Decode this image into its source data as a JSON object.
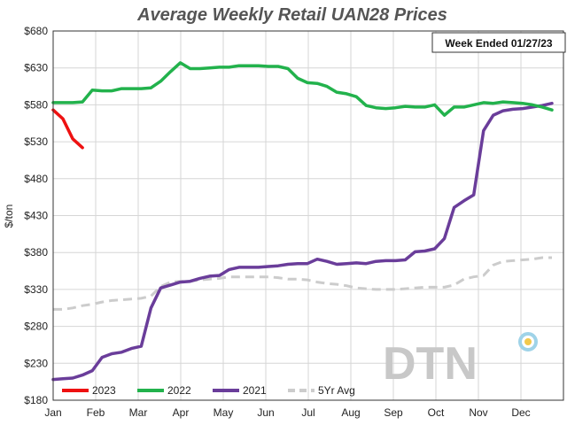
{
  "chart_data": {
    "type": "line",
    "title": "Average Weekly Retail UAN28 Prices",
    "ylabel": "$/ton",
    "xlabel": "",
    "ylim": [
      180,
      680
    ],
    "xlim": [
      0,
      12
    ],
    "y_ticks": [
      180,
      230,
      280,
      330,
      380,
      430,
      480,
      530,
      580,
      630,
      680
    ],
    "y_tick_labels": [
      "$180",
      "$230",
      "$280",
      "$330",
      "$380",
      "$430",
      "$480",
      "$530",
      "$580",
      "$630",
      "$680"
    ],
    "x_ticks": [
      0,
      1,
      2,
      3,
      4,
      5,
      6,
      7,
      8,
      9,
      10,
      11
    ],
    "x_tick_labels": [
      "Jan",
      "Feb",
      "Mar",
      "Apr",
      "May",
      "Jun",
      "Jul",
      "Aug",
      "Sep",
      "Oct",
      "Nov",
      "Dec"
    ],
    "grid": true,
    "legend_position": "bottom",
    "annotation": "Week Ended 01/27/23",
    "watermark": "DTN",
    "series": [
      {
        "name": "2023",
        "color": "#ee1111",
        "dashed": false,
        "x": [
          0.0,
          0.23,
          0.46,
          0.69
        ],
        "y": [
          573,
          561,
          534,
          522
        ]
      },
      {
        "name": "2022",
        "color": "#22b24c",
        "dashed": false,
        "x": [
          0.0,
          0.23,
          0.46,
          0.69,
          0.92,
          1.15,
          1.38,
          1.61,
          1.84,
          2.07,
          2.3,
          2.53,
          2.76,
          2.99,
          3.22,
          3.45,
          3.68,
          3.91,
          4.14,
          4.37,
          4.6,
          4.83,
          5.06,
          5.29,
          5.52,
          5.75,
          5.98,
          6.21,
          6.44,
          6.67,
          6.9,
          7.13,
          7.36,
          7.59,
          7.82,
          8.05,
          8.28,
          8.51,
          8.74,
          8.97,
          9.2,
          9.43,
          9.66,
          9.89,
          10.12,
          10.35,
          10.58,
          10.81,
          11.04,
          11.27,
          11.5,
          11.73
        ],
        "y": [
          583,
          583,
          583,
          584,
          600,
          599,
          599,
          602,
          602,
          602,
          603,
          612,
          625,
          637,
          629,
          629,
          630,
          631,
          631,
          633,
          633,
          633,
          632,
          632,
          629,
          616,
          610,
          609,
          605,
          597,
          595,
          591,
          579,
          576,
          575,
          576,
          578,
          577,
          577,
          580,
          566,
          577,
          577,
          580,
          583,
          582,
          584,
          583,
          582,
          580,
          577,
          573
        ]
      },
      {
        "name": "2021",
        "color": "#6a3d9a",
        "dashed": false,
        "x": [
          0.0,
          0.23,
          0.46,
          0.69,
          0.92,
          1.15,
          1.38,
          1.61,
          1.84,
          2.07,
          2.3,
          2.53,
          2.76,
          2.99,
          3.22,
          3.45,
          3.68,
          3.91,
          4.14,
          4.37,
          4.6,
          4.83,
          5.06,
          5.29,
          5.52,
          5.75,
          5.98,
          6.21,
          6.44,
          6.67,
          6.9,
          7.13,
          7.36,
          7.59,
          7.82,
          8.05,
          8.28,
          8.51,
          8.74,
          8.97,
          9.2,
          9.43,
          9.66,
          9.89,
          10.12,
          10.35,
          10.58,
          10.81,
          11.04,
          11.27,
          11.5,
          11.73
        ],
        "y": [
          208,
          209,
          210,
          214,
          220,
          238,
          243,
          245,
          250,
          253,
          305,
          332,
          336,
          340,
          341,
          345,
          348,
          349,
          357,
          360,
          360,
          360,
          361,
          362,
          364,
          365,
          365,
          371,
          368,
          364,
          365,
          366,
          365,
          368,
          369,
          369,
          370,
          381,
          382,
          385,
          399,
          441,
          450,
          458,
          545,
          566,
          572,
          574,
          575,
          577,
          579,
          582
        ]
      },
      {
        "name": "5Yr Avg",
        "color": "#cccccc",
        "dashed": true,
        "x": [
          0.0,
          0.23,
          0.46,
          0.69,
          0.92,
          1.15,
          1.38,
          1.61,
          1.84,
          2.07,
          2.3,
          2.53,
          2.76,
          2.99,
          3.22,
          3.45,
          3.68,
          3.91,
          4.14,
          4.37,
          4.6,
          4.83,
          5.06,
          5.29,
          5.52,
          5.75,
          5.98,
          6.21,
          6.44,
          6.67,
          6.9,
          7.13,
          7.36,
          7.59,
          7.82,
          8.05,
          8.28,
          8.51,
          8.74,
          8.97,
          9.2,
          9.43,
          9.66,
          9.89,
          10.12,
          10.35,
          10.58,
          10.81,
          11.04,
          11.27,
          11.5,
          11.73
        ],
        "y": [
          303,
          303,
          305,
          308,
          310,
          313,
          315,
          316,
          317,
          318,
          321,
          334,
          340,
          341,
          341,
          343,
          344,
          345,
          347,
          347,
          347,
          347,
          347,
          346,
          344,
          344,
          343,
          340,
          338,
          337,
          335,
          332,
          331,
          330,
          330,
          330,
          331,
          332,
          333,
          333,
          333,
          336,
          344,
          347,
          349,
          363,
          368,
          369,
          370,
          371,
          373,
          373
        ]
      }
    ]
  }
}
